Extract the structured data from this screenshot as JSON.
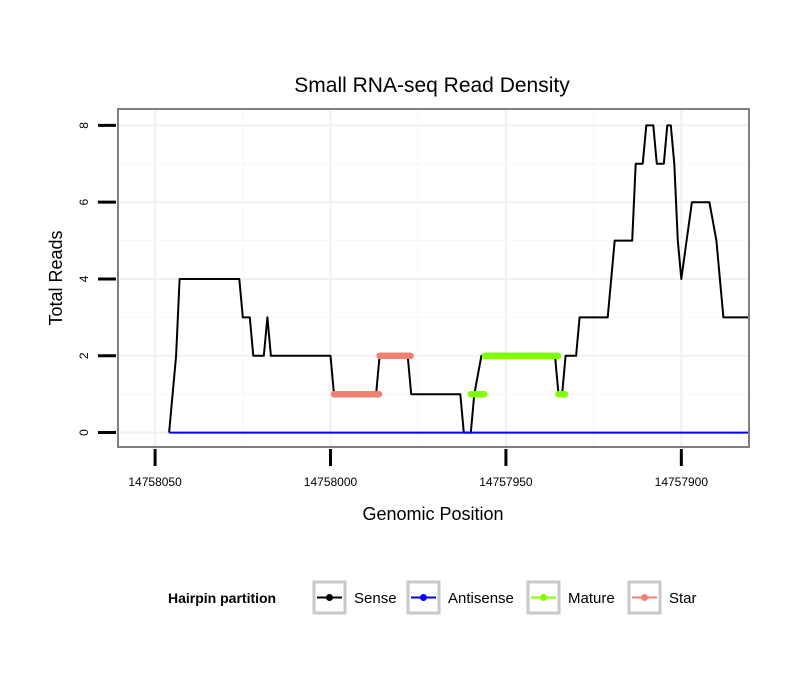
{
  "chart_data": {
    "type": "line",
    "title": "Small RNA-seq Read Density",
    "xlabel": "Genomic Position",
    "ylabel": "Total Reads",
    "xlim": [
      14758060,
      14757881
    ],
    "x_reversed": true,
    "ylim": [
      -0.35,
      8.4
    ],
    "x_ticks": [
      14758050,
      14758000,
      14757950,
      14757900
    ],
    "x_tick_labels": [
      "14758050",
      "14758000",
      "14757950",
      "14757900"
    ],
    "y_ticks": [
      0,
      2,
      4,
      6,
      8
    ],
    "y_tick_labels": [
      "0",
      "2",
      "4",
      "6",
      "8"
    ],
    "grid": true,
    "legend_title": "Hairpin partition",
    "legend_position": "bottom",
    "series": [
      {
        "name": "Sense",
        "color": "#000000",
        "style": "line",
        "x": [
          14758046,
          14758044,
          14758043,
          14758026,
          14758025,
          14758023,
          14758022,
          14758019,
          14758018,
          14758017,
          14758016,
          14758000,
          14757999,
          14757987,
          14757986,
          14757978,
          14757977,
          14757963,
          14757962,
          14757960,
          14757959,
          14757957,
          14757936,
          14757935,
          14757934,
          14757933,
          14757930,
          14757929,
          14757921,
          14757919,
          14757914,
          14757913,
          14757911,
          14757910,
          14757908,
          14757907,
          14757905,
          14757904,
          14757903,
          14757902,
          14757901,
          14757900,
          14757897,
          14757896,
          14757895,
          14757894,
          14757893,
          14757892,
          14757890,
          14757889,
          14757888,
          14757887,
          14757886,
          14757885,
          14757884,
          14757881
        ],
        "y": [
          0,
          2,
          4,
          4,
          3,
          3,
          2,
          2,
          3,
          2,
          2,
          2,
          1,
          1,
          2,
          2,
          1,
          1,
          0,
          0,
          1,
          2,
          2,
          1,
          1,
          2,
          2,
          3,
          3,
          5,
          5,
          7,
          7,
          8,
          8,
          7,
          7,
          8,
          8,
          7,
          5,
          4,
          6,
          6,
          6,
          6,
          6,
          6,
          5,
          4,
          3,
          3,
          3,
          3,
          3,
          3
        ]
      },
      {
        "name": "Antisense",
        "color": "#0000ff",
        "style": "line",
        "x": [
          14758046,
          14757881
        ],
        "y": [
          0,
          0
        ]
      },
      {
        "name": "Mature",
        "color": "#7fff00",
        "style": "points",
        "x": [
          14757960,
          14757959,
          14757958,
          14757957,
          14757956,
          14757955,
          14757954,
          14757953,
          14757952,
          14757951,
          14757950,
          14757949,
          14757948,
          14757947,
          14757946,
          14757945,
          14757944,
          14757943,
          14757942,
          14757941,
          14757940,
          14757939,
          14757938,
          14757937,
          14757936,
          14757935,
          14757934
        ],
        "y": [
          1,
          1,
          1,
          1,
          2,
          2,
          2,
          2,
          2,
          2,
          2,
          2,
          2,
          2,
          2,
          2,
          2,
          2,
          2,
          2,
          2,
          2,
          2,
          2,
          2,
          1,
          1
        ]
      },
      {
        "name": "Star",
        "color": "#f08070",
        "style": "points",
        "x": [
          14757999,
          14757998,
          14757997,
          14757996,
          14757995,
          14757994,
          14757993,
          14757992,
          14757991,
          14757990,
          14757989,
          14757988,
          14757987,
          14757986,
          14757985,
          14757984,
          14757983,
          14757982,
          14757981,
          14757980,
          14757979,
          14757978
        ],
        "y": [
          1,
          1,
          1,
          1,
          1,
          1,
          1,
          1,
          1,
          1,
          1,
          1,
          1,
          2,
          2,
          2,
          2,
          2,
          2,
          2,
          2,
          2
        ]
      }
    ]
  }
}
